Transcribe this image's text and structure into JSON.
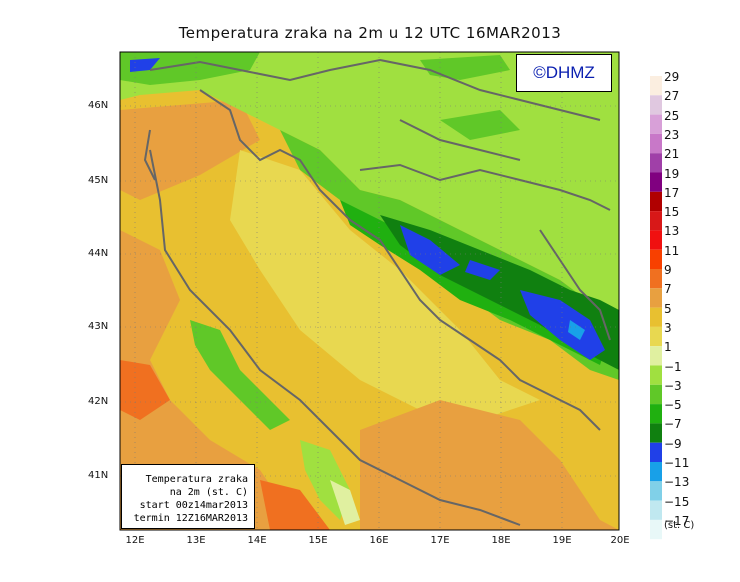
{
  "title": "Temperatura zraka na 2m u 12 UTC 16MAR2013",
  "logo": "©DHMZ",
  "info": {
    "line1": "Temperatura zraka",
    "line2": "na 2m (st. C)",
    "line3": "start 00z14mar2013",
    "line4": "termin 12Z16MAR2013"
  },
  "lat_labels": [
    "46N",
    "45N",
    "44N",
    "43N",
    "42N",
    "41N"
  ],
  "lon_labels": [
    "12E",
    "13E",
    "14E",
    "15E",
    "16E",
    "17E",
    "18E",
    "19E",
    "20E"
  ],
  "legend": {
    "labels": [
      "29",
      "27",
      "25",
      "23",
      "21",
      "19",
      "17",
      "15",
      "13",
      "11",
      "9",
      "7",
      "5",
      "3",
      "1",
      "−1",
      "−3",
      "−5",
      "−7",
      "−9",
      "−11",
      "−13",
      "−15",
      "−17"
    ],
    "colors": [
      "#fbeee0",
      "#e0c8e0",
      "#d8a0d8",
      "#c878c8",
      "#a040a8",
      "#800080",
      "#b00000",
      "#d81818",
      "#f01010",
      "#f84000",
      "#f07020",
      "#e8a040",
      "#e8c030",
      "#e8d850",
      "#e0f0a0",
      "#a0e040",
      "#60c828",
      "#20b010",
      "#108010",
      "#2040e8",
      "#18a0e8",
      "#80d0e8",
      "#c0e8f0",
      "#e8f8f8"
    ],
    "unit": "(st. C)"
  }
}
